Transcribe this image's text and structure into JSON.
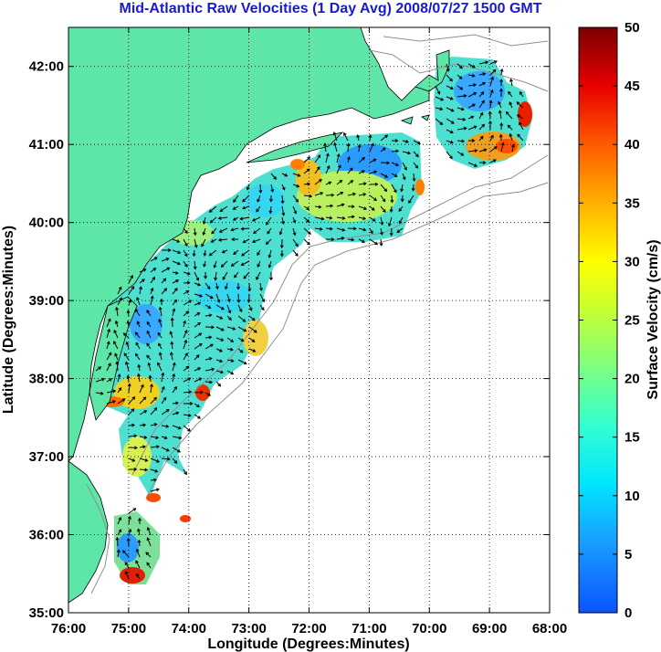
{
  "title": "Mid-Atlantic Raw Velocities (1 Day Avg) 2008/07/27 1500 GMT",
  "map": {
    "xlabel": "Longitude (Degrees:Minutes)",
    "ylabel": "Latitude (Degrees:Minutes)",
    "lon_ticks": [
      "76:00",
      "75:00",
      "74:00",
      "73:00",
      "72:00",
      "71:00",
      "70:00",
      "69:00",
      "68:00"
    ],
    "lat_ticks": [
      "42:00",
      "41:00",
      "40:00",
      "39:00",
      "38:00",
      "37:00",
      "36:00",
      "35:00"
    ],
    "lon_range": [
      -76,
      -68
    ],
    "lat_range": [
      35,
      42.5
    ],
    "grid": true,
    "land_color": "#5ee6a8",
    "ocean_color": "#ffffff"
  },
  "colorbar": {
    "label": "Surface Velocity (cm/s)",
    "ticks": [
      "50",
      "45",
      "40",
      "35",
      "30",
      "25",
      "20",
      "15",
      "10",
      "5",
      "0"
    ],
    "range": [
      0,
      50
    ],
    "units": "cm/s"
  }
}
